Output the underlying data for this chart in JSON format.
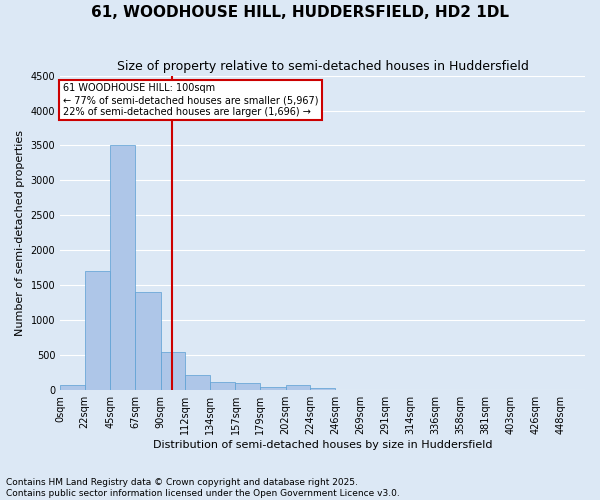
{
  "title": "61, WOODHOUSE HILL, HUDDERSFIELD, HD2 1DL",
  "subtitle": "Size of property relative to semi-detached houses in Huddersfield",
  "xlabel": "Distribution of semi-detached houses by size in Huddersfield",
  "ylabel": "Number of semi-detached properties",
  "bar_values": [
    75,
    1700,
    3500,
    1400,
    540,
    220,
    120,
    100,
    50,
    75,
    30,
    10,
    5,
    5,
    5,
    5,
    5,
    5,
    5,
    5,
    5
  ],
  "bin_edges": [
    0,
    22,
    45,
    67,
    90,
    112,
    134,
    157,
    179,
    202,
    224,
    246,
    269,
    291,
    314,
    336,
    358,
    381,
    403,
    426,
    448,
    470
  ],
  "tick_labels": [
    "0sqm",
    "22sqm",
    "45sqm",
    "67sqm",
    "90sqm",
    "112sqm",
    "134sqm",
    "157sqm",
    "179sqm",
    "202sqm",
    "224sqm",
    "246sqm",
    "269sqm",
    "291sqm",
    "314sqm",
    "336sqm",
    "358sqm",
    "381sqm",
    "403sqm",
    "426sqm",
    "448sqm"
  ],
  "bar_color": "#aec6e8",
  "bar_edgecolor": "#5a9fd4",
  "vline_x": 100,
  "vline_color": "#cc0000",
  "annotation_title": "61 WOODHOUSE HILL: 100sqm",
  "annotation_line1": "← 77% of semi-detached houses are smaller (5,967)",
  "annotation_line2": "22% of semi-detached houses are larger (1,696) →",
  "annotation_box_color": "#cc0000",
  "ylim": [
    0,
    4500
  ],
  "yticks": [
    0,
    500,
    1000,
    1500,
    2000,
    2500,
    3000,
    3500,
    4000,
    4500
  ],
  "footnote": "Contains HM Land Registry data © Crown copyright and database right 2025.\nContains public sector information licensed under the Open Government Licence v3.0.",
  "bg_color": "#dce8f5",
  "plot_bg_color": "#dce8f5",
  "grid_color": "#ffffff",
  "title_fontsize": 11,
  "subtitle_fontsize": 9,
  "label_fontsize": 8,
  "tick_fontsize": 7,
  "footnote_fontsize": 6.5
}
